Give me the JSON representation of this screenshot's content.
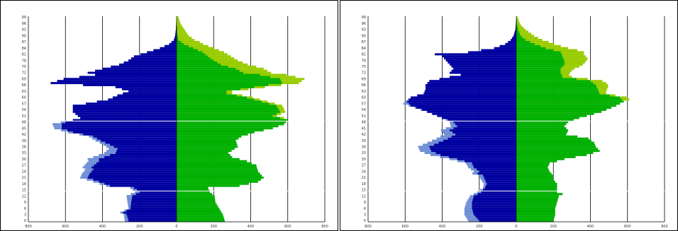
{
  "colors": {
    "male": "#0000a0",
    "male_excess": "#6f8fd6",
    "female": "#00b000",
    "female_excess": "#99cc00",
    "grid": "#000000",
    "marker": "#ffffff"
  },
  "chart_data": [
    {
      "type": "bar",
      "orientation": "horizontal-population-pyramid",
      "xlim": [
        -800,
        800
      ],
      "xticks": [
        800,
        600,
        400,
        200,
        0,
        200,
        400,
        600,
        800
      ],
      "ylim": [
        0,
        100
      ],
      "yticks": [
        0,
        3,
        6,
        9,
        12,
        15,
        18,
        21,
        24,
        27,
        30,
        33,
        36,
        39,
        42,
        45,
        48,
        51,
        54,
        57,
        60,
        63,
        66,
        69,
        72,
        75,
        78,
        81,
        84,
        87,
        90,
        93,
        96,
        99
      ],
      "marker_lines_age": [
        15,
        49
      ],
      "grid": true,
      "series": [
        {
          "side": "left",
          "anchors": [
            [
              0,
              260
            ],
            [
              3,
              270
            ],
            [
              4,
              290
            ],
            [
              6,
              250
            ],
            [
              12,
              240
            ],
            [
              14,
              200
            ],
            [
              16,
              230
            ],
            [
              17,
              360
            ],
            [
              19,
              420
            ],
            [
              21,
              480
            ],
            [
              23,
              470
            ],
            [
              25,
              450
            ],
            [
              26,
              460
            ],
            [
              29,
              420
            ],
            [
              30,
              420
            ],
            [
              33,
              330
            ],
            [
              35,
              320
            ],
            [
              37,
              360
            ],
            [
              39,
              410
            ],
            [
              41,
              450
            ],
            [
              43,
              560
            ],
            [
              45,
              620
            ],
            [
              47,
              620
            ],
            [
              48,
              600
            ],
            [
              50,
              520
            ],
            [
              53,
              560
            ],
            [
              56,
              560
            ],
            [
              57,
              490
            ],
            [
              59,
              370
            ],
            [
              61,
              320
            ],
            [
              63,
              260
            ],
            [
              65,
              330
            ],
            [
              67,
              680
            ],
            [
              69,
              610
            ],
            [
              71,
              440
            ],
            [
              72,
              480
            ],
            [
              74,
              400
            ],
            [
              76,
              310
            ],
            [
              78,
              260
            ],
            [
              80,
              230
            ],
            [
              82,
              160
            ],
            [
              84,
              90
            ],
            [
              86,
              40
            ],
            [
              88,
              15
            ],
            [
              90,
              8
            ],
            [
              93,
              4
            ],
            [
              96,
              2
            ],
            [
              99,
              0
            ]
          ],
          "excess": [
            [
              0,
              20
            ],
            [
              6,
              10
            ],
            [
              12,
              30
            ],
            [
              16,
              20
            ],
            [
              17,
              20
            ],
            [
              21,
              40
            ],
            [
              24,
              40
            ],
            [
              27,
              50
            ],
            [
              30,
              60
            ],
            [
              33,
              60
            ],
            [
              36,
              40
            ],
            [
              38,
              30
            ],
            [
              42,
              20
            ],
            [
              45,
              40
            ],
            [
              47,
              50
            ],
            [
              49,
              0
            ]
          ]
        },
        {
          "side": "right",
          "anchors": [
            [
              0,
              260
            ],
            [
              3,
              250
            ],
            [
              6,
              230
            ],
            [
              9,
              210
            ],
            [
              12,
              205
            ],
            [
              14,
              180
            ],
            [
              16,
              170
            ],
            [
              17,
              340
            ],
            [
              19,
              440
            ],
            [
              21,
              470
            ],
            [
              24,
              440
            ],
            [
              27,
              430
            ],
            [
              29,
              380
            ],
            [
              31,
              300
            ],
            [
              33,
              280
            ],
            [
              36,
              330
            ],
            [
              39,
              320
            ],
            [
              41,
              350
            ],
            [
              43,
              420
            ],
            [
              45,
              520
            ],
            [
              47,
              580
            ],
            [
              49,
              600
            ],
            [
              51,
              520
            ],
            [
              53,
              560
            ],
            [
              56,
              540
            ],
            [
              58,
              460
            ],
            [
              60,
              380
            ],
            [
              62,
              270
            ],
            [
              63,
              270
            ],
            [
              65,
              420
            ],
            [
              67,
              570
            ],
            [
              69,
              560
            ],
            [
              71,
              450
            ],
            [
              72,
              360
            ],
            [
              74,
              320
            ],
            [
              76,
              240
            ],
            [
              78,
              200
            ],
            [
              80,
              170
            ],
            [
              82,
              140
            ],
            [
              84,
              90
            ],
            [
              86,
              40
            ],
            [
              88,
              10
            ],
            [
              91,
              4
            ],
            [
              94,
              2
            ],
            [
              99,
              0
            ]
          ],
          "excess": [
            [
              0,
              0
            ],
            [
              16,
              0
            ],
            [
              49,
              0
            ],
            [
              50,
              20
            ],
            [
              55,
              30
            ],
            [
              60,
              30
            ],
            [
              63,
              30
            ],
            [
              66,
              70
            ],
            [
              69,
              130
            ],
            [
              72,
              150
            ],
            [
              75,
              150
            ],
            [
              78,
              130
            ],
            [
              81,
              120
            ],
            [
              84,
              110
            ],
            [
              87,
              100
            ],
            [
              90,
              60
            ],
            [
              93,
              40
            ],
            [
              96,
              20
            ],
            [
              99,
              10
            ]
          ]
        }
      ]
    },
    {
      "type": "bar",
      "orientation": "horizontal-population-pyramid",
      "xlim": [
        -800,
        800
      ],
      "xticks": [
        800,
        600,
        400,
        200,
        0,
        200,
        400,
        600,
        800
      ],
      "ylim": [
        0,
        100
      ],
      "yticks": [
        0,
        3,
        6,
        9,
        12,
        15,
        18,
        21,
        24,
        27,
        30,
        33,
        36,
        39,
        42,
        45,
        48,
        51,
        54,
        57,
        60,
        63,
        66,
        69,
        72,
        75,
        78,
        81,
        84,
        87,
        90,
        93,
        96,
        99
      ],
      "marker_lines_age": [
        15,
        49
      ],
      "grid": true,
      "series": [
        {
          "side": "left",
          "anchors": [
            [
              0,
              200
            ],
            [
              3,
              230
            ],
            [
              6,
              240
            ],
            [
              9,
              240
            ],
            [
              12,
              230
            ],
            [
              14,
              190
            ],
            [
              16,
              170
            ],
            [
              18,
              160
            ],
            [
              20,
              170
            ],
            [
              22,
              180
            ],
            [
              23,
              210
            ],
            [
              24,
              200
            ],
            [
              26,
              230
            ],
            [
              28,
              240
            ],
            [
              30,
              320
            ],
            [
              32,
              410
            ],
            [
              34,
              460
            ],
            [
              36,
              470
            ],
            [
              38,
              420
            ],
            [
              40,
              370
            ],
            [
              42,
              330
            ],
            [
              44,
              360
            ],
            [
              46,
              320
            ],
            [
              48,
              340
            ],
            [
              50,
              400
            ],
            [
              53,
              480
            ],
            [
              56,
              570
            ],
            [
              58,
              590
            ],
            [
              60,
              570
            ],
            [
              62,
              500
            ],
            [
              64,
              490
            ],
            [
              66,
              490
            ],
            [
              68,
              470
            ],
            [
              70,
              360
            ],
            [
              71,
              300
            ],
            [
              72,
              360
            ],
            [
              74,
              340
            ],
            [
              76,
              360
            ],
            [
              78,
              380
            ],
            [
              80,
              400
            ],
            [
              81,
              440
            ],
            [
              82,
              260
            ],
            [
              84,
              120
            ],
            [
              86,
              60
            ],
            [
              88,
              30
            ],
            [
              90,
              15
            ],
            [
              93,
              5
            ],
            [
              96,
              2
            ],
            [
              99,
              0
            ]
          ],
          "excess": [
            [
              0,
              60
            ],
            [
              3,
              50
            ],
            [
              6,
              40
            ],
            [
              9,
              30
            ],
            [
              12,
              20
            ],
            [
              14,
              20
            ],
            [
              16,
              10
            ],
            [
              20,
              20
            ],
            [
              24,
              30
            ],
            [
              27,
              30
            ],
            [
              30,
              40
            ],
            [
              33,
              60
            ],
            [
              36,
              60
            ],
            [
              39,
              60
            ],
            [
              42,
              60
            ],
            [
              45,
              40
            ],
            [
              48,
              20
            ],
            [
              50,
              0
            ],
            [
              56,
              10
            ],
            [
              57,
              30
            ],
            [
              58,
              10
            ],
            [
              60,
              0
            ]
          ]
        },
        {
          "side": "right",
          "anchors": [
            [
              0,
              200
            ],
            [
              3,
              210
            ],
            [
              6,
              210
            ],
            [
              9,
              220
            ],
            [
              12,
              230
            ],
            [
              13,
              250
            ],
            [
              14,
              220
            ],
            [
              16,
              220
            ],
            [
              18,
              220
            ],
            [
              20,
              200
            ],
            [
              22,
              200
            ],
            [
              24,
              180
            ],
            [
              26,
              170
            ],
            [
              28,
              180
            ],
            [
              30,
              260
            ],
            [
              32,
              380
            ],
            [
              34,
              450
            ],
            [
              36,
              430
            ],
            [
              38,
              420
            ],
            [
              40,
              390
            ],
            [
              42,
              270
            ],
            [
              44,
              280
            ],
            [
              46,
              260
            ],
            [
              48,
              280
            ],
            [
              50,
              340
            ],
            [
              53,
              460
            ],
            [
              56,
              540
            ],
            [
              58,
              580
            ],
            [
              60,
              560
            ],
            [
              62,
              450
            ],
            [
              64,
              440
            ],
            [
              66,
              430
            ],
            [
              68,
              400
            ],
            [
              70,
              250
            ],
            [
              72,
              240
            ],
            [
              74,
              240
            ],
            [
              76,
              260
            ],
            [
              78,
              260
            ],
            [
              80,
              250
            ],
            [
              82,
              240
            ],
            [
              84,
              160
            ],
            [
              86,
              100
            ],
            [
              88,
              50
            ],
            [
              90,
              25
            ],
            [
              93,
              10
            ],
            [
              96,
              5
            ],
            [
              99,
              2
            ]
          ],
          "excess": [
            [
              0,
              0
            ],
            [
              58,
              0
            ],
            [
              59,
              40
            ],
            [
              61,
              30
            ],
            [
              63,
              40
            ],
            [
              65,
              60
            ],
            [
              67,
              70
            ],
            [
              69,
              60
            ],
            [
              71,
              40
            ],
            [
              73,
              60
            ],
            [
              75,
              90
            ],
            [
              77,
              110
            ],
            [
              79,
              130
            ],
            [
              81,
              120
            ],
            [
              83,
              130
            ],
            [
              85,
              110
            ],
            [
              87,
              100
            ],
            [
              89,
              80
            ],
            [
              91,
              60
            ],
            [
              93,
              40
            ],
            [
              95,
              20
            ],
            [
              97,
              10
            ],
            [
              99,
              5
            ]
          ]
        }
      ]
    }
  ]
}
